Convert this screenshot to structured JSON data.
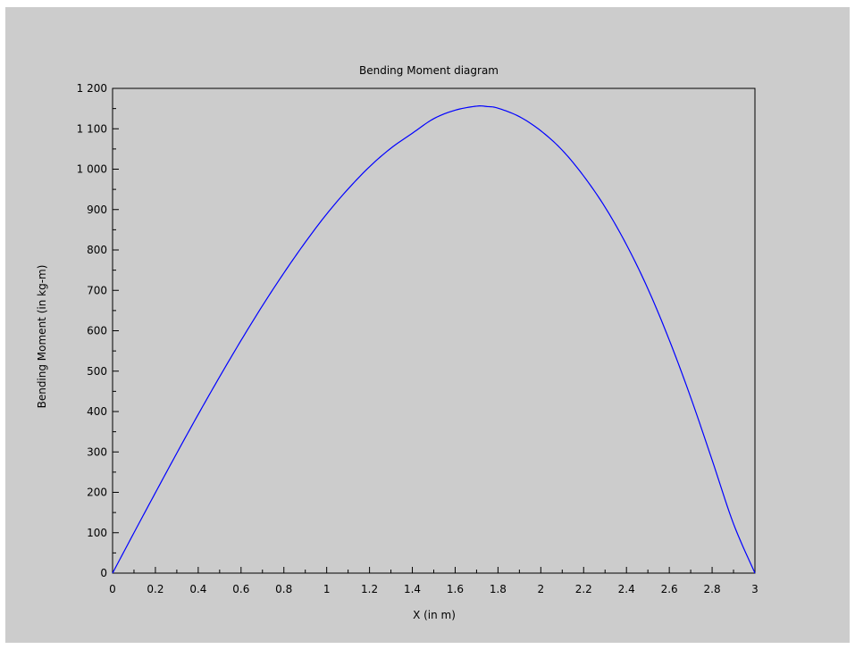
{
  "chart_data": {
    "type": "line",
    "title": "Bending Moment diagram",
    "xlabel": "X (in m)",
    "ylabel": "Bending Moment (in kg-m)",
    "xlim": [
      0,
      3
    ],
    "ylim": [
      0,
      1200
    ],
    "x_ticks": [
      0,
      0.2,
      0.4,
      0.6,
      0.8,
      1,
      1.2,
      1.4,
      1.6,
      1.8,
      2,
      2.2,
      2.4,
      2.6,
      2.8,
      3
    ],
    "x_tick_labels": [
      "0",
      "0.2",
      "0.4",
      "0.6",
      "0.8",
      "1",
      "1.2",
      "1.4",
      "1.6",
      "1.8",
      "2",
      "2.2",
      "2.4",
      "2.6",
      "2.8",
      "3"
    ],
    "y_ticks": [
      0,
      100,
      200,
      300,
      400,
      500,
      600,
      700,
      800,
      900,
      1000,
      1100,
      1200
    ],
    "y_tick_labels": [
      "0",
      "100",
      "200",
      "300",
      "400",
      "500",
      "600",
      "700",
      "800",
      "900",
      "1 000",
      "1 100",
      "1 200"
    ],
    "grid": false,
    "series": [
      {
        "color": "#0000ff",
        "x": [
          0,
          0.1,
          0.2,
          0.3,
          0.4,
          0.5,
          0.6,
          0.7,
          0.8,
          0.9,
          1.0,
          1.1,
          1.2,
          1.3,
          1.4,
          1.5,
          1.6,
          1.7,
          1.75,
          1.8,
          1.9,
          2.0,
          2.1,
          2.2,
          2.3,
          2.4,
          2.5,
          2.6,
          2.7,
          2.8,
          2.9,
          3.0
        ],
        "y": [
          0,
          100,
          199,
          297,
          393,
          486,
          576,
          662,
          743,
          819,
          889,
          951,
          1006,
          1052,
          1089,
          1125,
          1146,
          1156,
          1155,
          1151,
          1130,
          1095,
          1047,
          983,
          906,
          813,
          704,
          577,
          435,
          280,
          122,
          0
        ]
      }
    ]
  }
}
